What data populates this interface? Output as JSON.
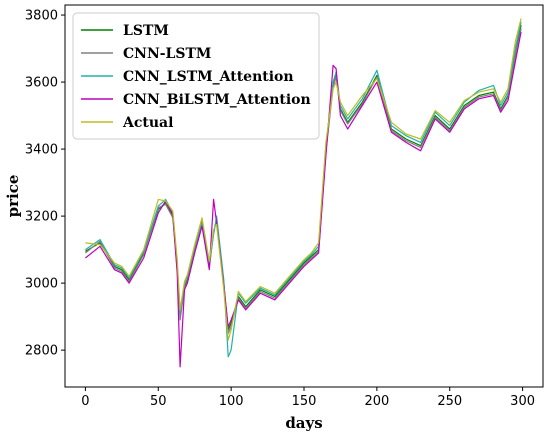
{
  "chart_data": {
    "type": "line",
    "title": "",
    "xlabel": "days",
    "ylabel": "price",
    "xlim": [
      -14,
      314
    ],
    "ylim": [
      2690,
      3830
    ],
    "x_ticks": [
      0,
      50,
      100,
      150,
      200,
      250,
      300
    ],
    "y_ticks": [
      2800,
      3000,
      3200,
      3400,
      3600,
      3800
    ],
    "grid": false,
    "legend_position": "top-left",
    "x": [
      0,
      10,
      20,
      25,
      30,
      40,
      50,
      55,
      60,
      63,
      65,
      68,
      70,
      75,
      80,
      85,
      88,
      90,
      95,
      98,
      100,
      105,
      110,
      120,
      130,
      140,
      150,
      155,
      160,
      165,
      170,
      172,
      175,
      180,
      190,
      200,
      210,
      220,
      230,
      240,
      250,
      260,
      270,
      280,
      285,
      290,
      295,
      299
    ],
    "series": [
      {
        "name": "LSTM",
        "color": "#008000",
        "values": [
          3095,
          3120,
          3050,
          3040,
          3010,
          3090,
          3220,
          3240,
          3200,
          3050,
          2900,
          2990,
          3010,
          3100,
          3180,
          3050,
          3150,
          3190,
          3000,
          2860,
          2880,
          2960,
          2930,
          2980,
          2960,
          3010,
          3060,
          3080,
          3100,
          3400,
          3590,
          3620,
          3520,
          3480,
          3540,
          3620,
          3460,
          3430,
          3410,
          3500,
          3460,
          3530,
          3560,
          3570,
          3520,
          3560,
          3680,
          3770
        ]
      },
      {
        "name": "CNN-LSTM",
        "color": "#808080",
        "values": [
          3090,
          3125,
          3045,
          3035,
          3005,
          3085,
          3225,
          3235,
          3195,
          3040,
          2890,
          2985,
          3005,
          3095,
          3185,
          3045,
          3155,
          3185,
          2995,
          2850,
          2870,
          2955,
          2925,
          2975,
          2955,
          3005,
          3055,
          3075,
          3095,
          3390,
          3585,
          3615,
          3515,
          3475,
          3535,
          3615,
          3455,
          3425,
          3405,
          3495,
          3455,
          3525,
          3555,
          3565,
          3515,
          3555,
          3675,
          3760
        ]
      },
      {
        "name": "CNN_LSTM_Attention",
        "color": "#20b2aa",
        "values": [
          3100,
          3130,
          3055,
          3045,
          3015,
          3095,
          3230,
          3250,
          3210,
          3060,
          2910,
          3000,
          3020,
          3110,
          3175,
          3060,
          3145,
          3200,
          3010,
          2780,
          2800,
          2970,
          2940,
          2985,
          2965,
          3015,
          3065,
          3085,
          3110,
          3410,
          3600,
          3630,
          3530,
          3490,
          3550,
          3635,
          3470,
          3440,
          3420,
          3510,
          3470,
          3540,
          3575,
          3590,
          3530,
          3570,
          3700,
          3780
        ]
      },
      {
        "name": "CNN_BiLSTM_Attention",
        "color": "#bf00bf",
        "values": [
          3075,
          3110,
          3040,
          3030,
          3000,
          3075,
          3210,
          3245,
          3205,
          3030,
          2750,
          2980,
          3000,
          3090,
          3170,
          3040,
          3250,
          3180,
          2990,
          2870,
          2890,
          2950,
          2920,
          2970,
          2950,
          3000,
          3050,
          3070,
          3090,
          3380,
          3650,
          3640,
          3500,
          3460,
          3530,
          3600,
          3450,
          3420,
          3395,
          3490,
          3450,
          3520,
          3550,
          3560,
          3510,
          3545,
          3660,
          3750
        ]
      },
      {
        "name": "Actual",
        "color": "#bcbd22",
        "values": [
          3120,
          3115,
          3060,
          3050,
          3020,
          3100,
          3250,
          3245,
          3215,
          3070,
          2920,
          3005,
          3025,
          3115,
          3195,
          3065,
          3160,
          3175,
          2980,
          2830,
          2860,
          2975,
          2945,
          2990,
          2970,
          3020,
          3070,
          3090,
          3120,
          3420,
          3580,
          3600,
          3540,
          3500,
          3560,
          3610,
          3480,
          3445,
          3430,
          3515,
          3480,
          3545,
          3570,
          3580,
          3540,
          3580,
          3720,
          3790
        ]
      }
    ]
  }
}
